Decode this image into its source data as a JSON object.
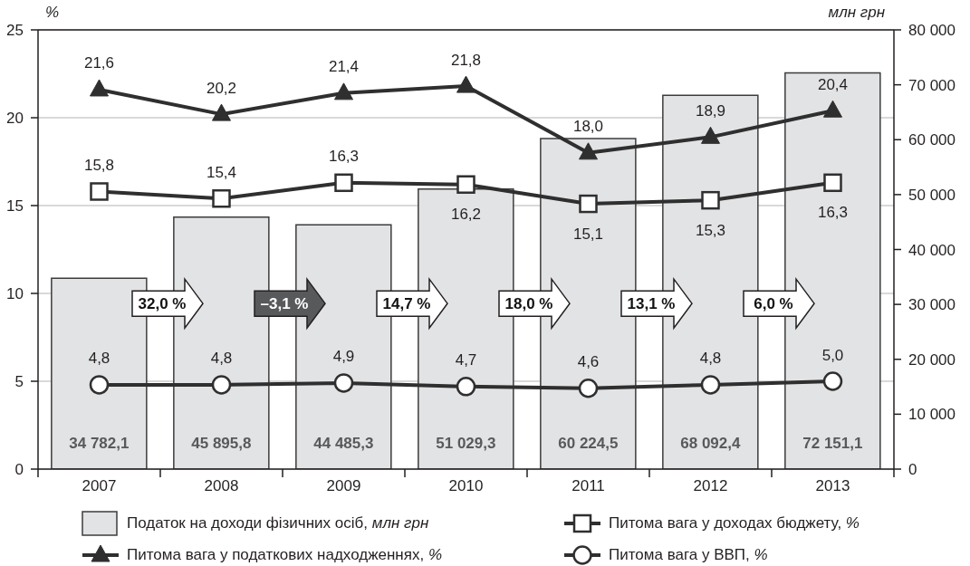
{
  "chart_data": {
    "type": "bar",
    "categories": [
      "2007",
      "2008",
      "2009",
      "2010",
      "2011",
      "2012",
      "2013"
    ],
    "ylabel": "%",
    "y2label": "млн грн",
    "series": [
      {
        "name": "Податок на доходи фізичних осіб, млн грн",
        "axis": "y2",
        "color": "#e2e3e5",
        "values": [
          34782.1,
          45895.8,
          44485.3,
          51029.3,
          60224.5,
          68092.4,
          72151.1
        ],
        "value_labels": [
          "34 782,1",
          "45 895,8",
          "44 485,3",
          "51 029,3",
          "60 224,5",
          "68 092,4",
          "72 151,1"
        ]
      },
      {
        "name": "Питома вага у податкових надходженнях, %",
        "type": "line",
        "marker": "triangle",
        "color": "#2f2f2f",
        "values": [
          21.6,
          20.2,
          21.4,
          21.8,
          18.0,
          18.9,
          20.4
        ],
        "value_labels": [
          "21,6",
          "20,2",
          "21,4",
          "21,8",
          "18,0",
          "18,9",
          "20,4"
        ]
      },
      {
        "name": "Питома вага у доходах бюджету, %",
        "type": "line",
        "marker": "square",
        "color": "#2f2f2f",
        "values": [
          15.8,
          15.4,
          16.3,
          16.2,
          15.1,
          15.3,
          16.3
        ],
        "value_labels": [
          "15,8",
          "15,4",
          "16,3",
          "16,2",
          "15,1",
          "15,3",
          "16,3"
        ]
      },
      {
        "name": "Питома вага у ВВП, %",
        "type": "line",
        "marker": "circle",
        "color": "#2f2f2f",
        "values": [
          4.8,
          4.8,
          4.9,
          4.7,
          4.6,
          4.8,
          5.0
        ],
        "value_labels": [
          "4,8",
          "4,8",
          "4,9",
          "4,7",
          "4,6",
          "4,8",
          "5,0"
        ]
      }
    ],
    "ylim": [
      0,
      25
    ],
    "yticks": [
      0,
      5,
      10,
      15,
      20,
      25
    ],
    "y2lim": [
      0,
      80000
    ],
    "y2ticks": [
      0,
      {
        "value": 10000,
        "label": "10 000"
      },
      {
        "value": 20000,
        "label": "20 000"
      },
      {
        "value": 30000,
        "label": "30 000"
      },
      {
        "value": 40000,
        "label": "40 000"
      },
      {
        "value": 50000,
        "label": "50 000"
      },
      {
        "value": 60000,
        "label": "60 000"
      },
      {
        "value": 70000,
        "label": "70 000"
      },
      {
        "value": 80000,
        "label": "80 000"
      }
    ],
    "grid": "y",
    "legend": "bottom",
    "annotations": [
      "32,0 %",
      "–3,1 %",
      "14,7 %",
      "18,0 %",
      "13,1 %",
      "6,0 %"
    ]
  }
}
